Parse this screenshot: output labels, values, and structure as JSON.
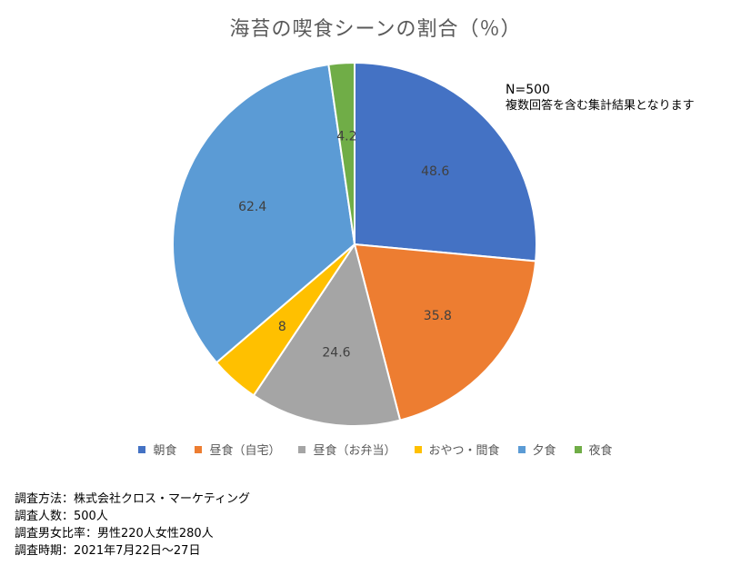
{
  "chart_data": {
    "type": "pie",
    "title": "海苔の喫食シーンの割合（％）",
    "categories": [
      "朝食",
      "昼食（自宅）",
      "昼食（お弁当）",
      "おやつ・間食",
      "夕食",
      "夜食"
    ],
    "values": [
      48.6,
      35.8,
      24.6,
      8,
      62.4,
      4.2
    ],
    "colors": [
      "#4472C4",
      "#ED7D31",
      "#A5A5A5",
      "#FFC000",
      "#5B9BD5",
      "#70AD47"
    ],
    "legend": "bottom",
    "note": [
      "N=500",
      "複数回答を含む集計結果となります"
    ]
  },
  "survey": [
    "調査方法：株式会社クロス・マーケティング",
    "調査人数：500人",
    "調査男女比率：男性220人女性280人",
    "調査時期：2021年7月22日～27日"
  ]
}
